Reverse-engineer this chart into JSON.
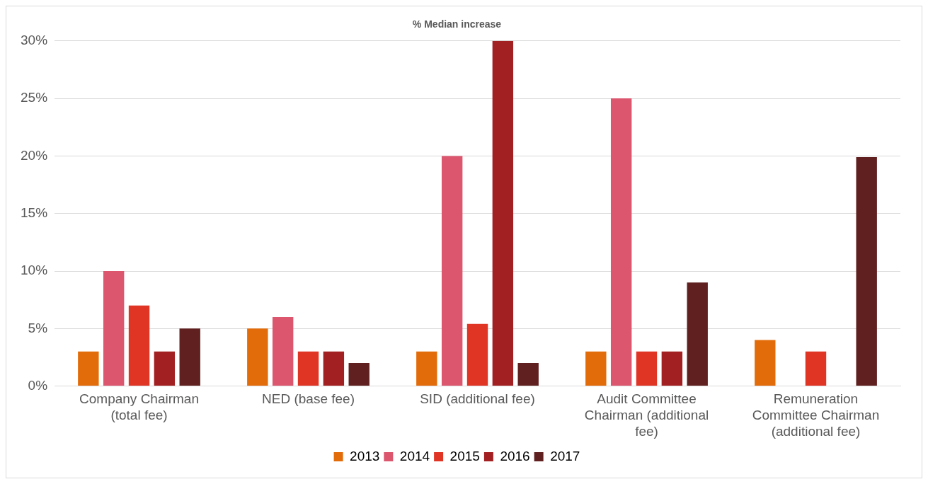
{
  "chart_data": {
    "type": "bar",
    "title": "% Median increase",
    "categories": [
      "Company Chairman (total fee)",
      "NED (base fee)",
      "SID (additional fee)",
      "Audit Committee Chairman (additional fee)",
      "Remuneration Committee Chairman (additional fee)"
    ],
    "series": [
      {
        "name": "2013",
        "color": "#e36c0a",
        "values": [
          3,
          5,
          3,
          3,
          4
        ]
      },
      {
        "name": "2014",
        "color": "#dc566e",
        "values": [
          10,
          6,
          20,
          25,
          null
        ]
      },
      {
        "name": "2015",
        "color": "#e03425",
        "values": [
          7,
          3,
          5.4,
          3,
          3
        ]
      },
      {
        "name": "2016",
        "color": "#a32022",
        "values": [
          3,
          3,
          30,
          3,
          null
        ]
      },
      {
        "name": "2017",
        "color": "#602020",
        "values": [
          5,
          2,
          2,
          9,
          19.9
        ]
      }
    ],
    "ylim": [
      0,
      30
    ],
    "yticks": [
      {
        "value": 0,
        "label": "0%"
      },
      {
        "value": 5,
        "label": "5%"
      },
      {
        "value": 10,
        "label": "10%"
      },
      {
        "value": 15,
        "label": "15%"
      },
      {
        "value": 20,
        "label": "20%"
      },
      {
        "value": 25,
        "label": "25%"
      },
      {
        "value": 30,
        "label": "30%"
      }
    ],
    "grid": "y",
    "legend": "bottom"
  }
}
